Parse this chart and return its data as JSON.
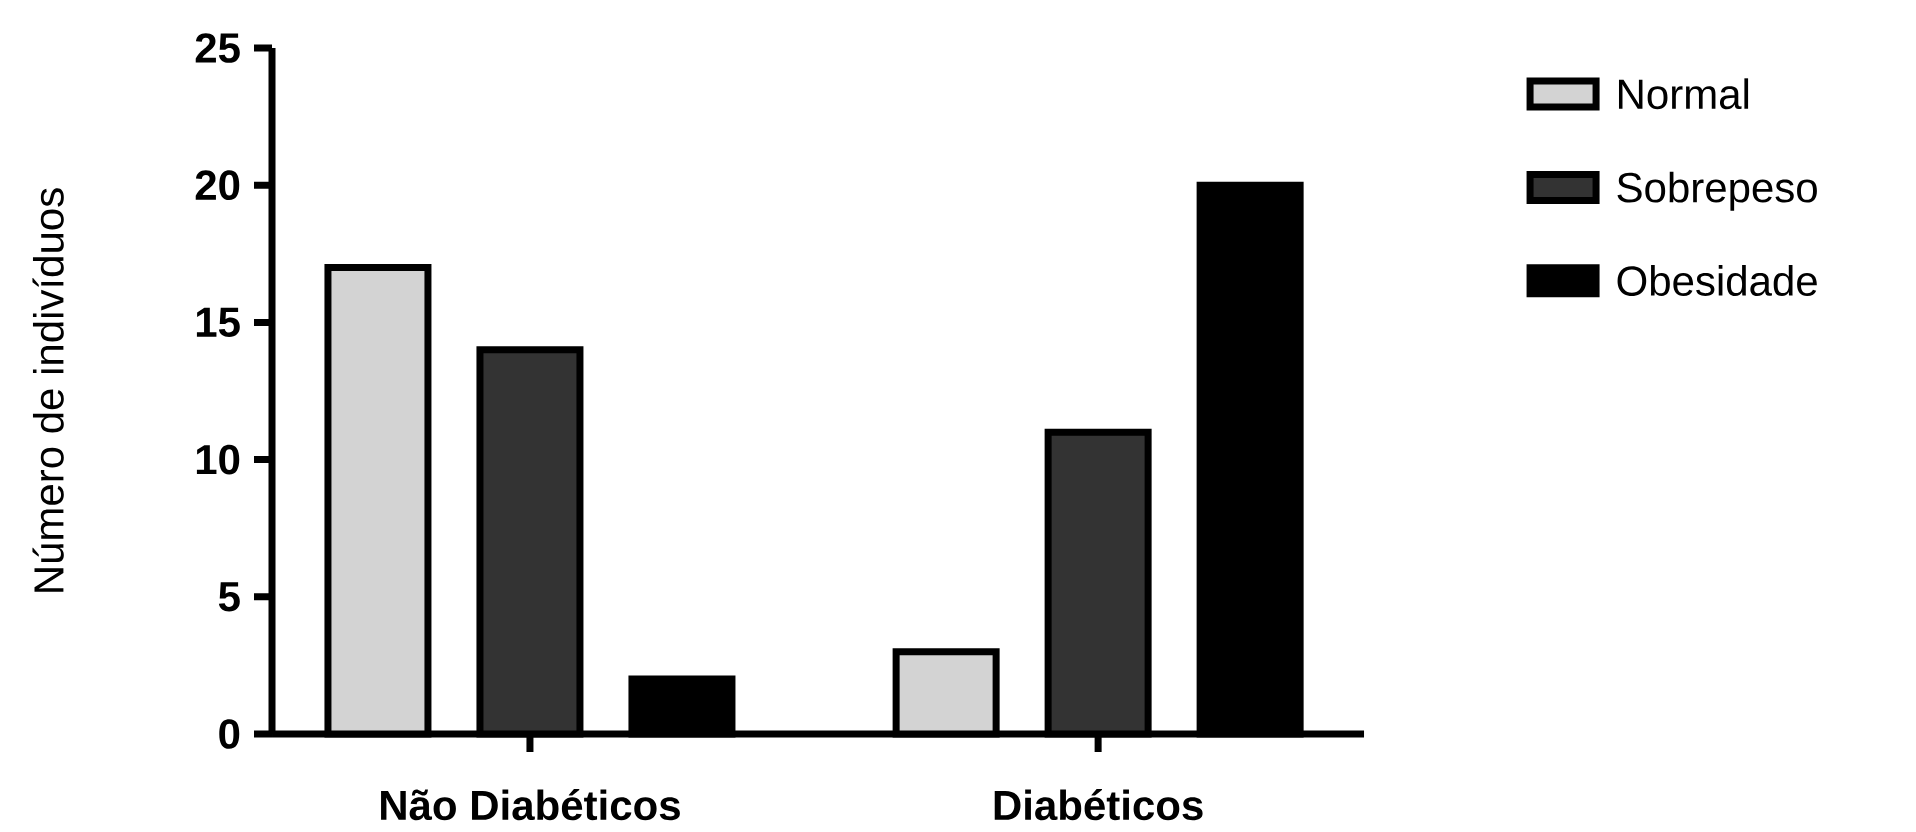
{
  "chart_data": {
    "type": "bar",
    "ylabel": "Número de indivíduos",
    "categories": [
      "Não Diabéticos",
      "Diabéticos"
    ],
    "series": [
      {
        "name": "Normal",
        "color": "#d3d3d3",
        "values": [
          17,
          3
        ]
      },
      {
        "name": "Sobrepeso",
        "color": "#333333",
        "values": [
          14,
          11
        ]
      },
      {
        "name": "Obesidade",
        "color": "#000000",
        "values": [
          2,
          20
        ]
      }
    ],
    "ylim": [
      0,
      25
    ],
    "yticks": [
      0,
      5,
      10,
      15,
      20,
      25
    ],
    "grid": false,
    "legend": "top right"
  }
}
